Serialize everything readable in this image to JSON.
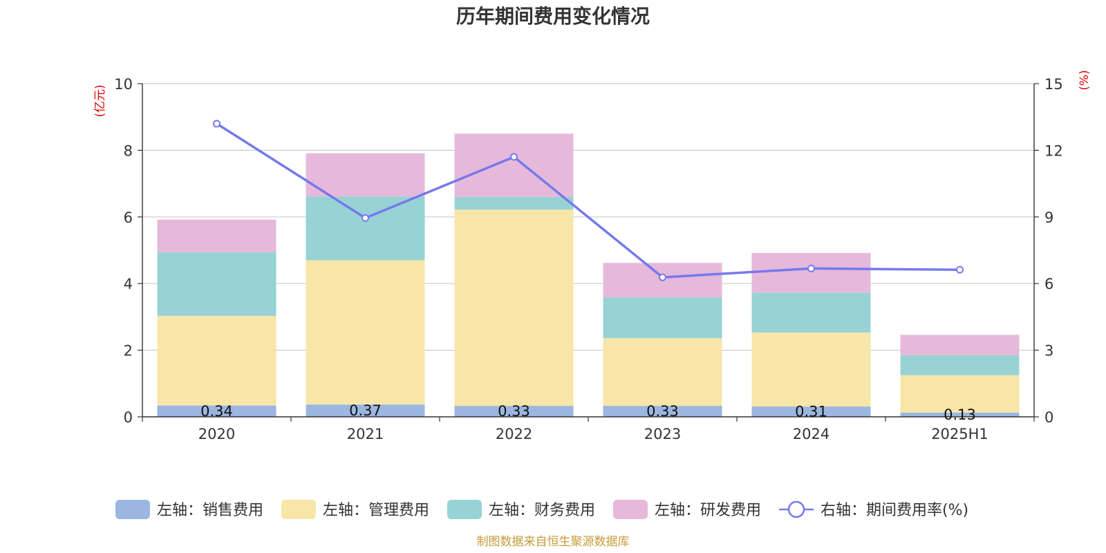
{
  "chart_data": {
    "type": "bar",
    "title": "历年期间费用变化情况",
    "left_unit": "(亿元)",
    "right_unit": "(%)",
    "categories": [
      "2020",
      "2021",
      "2022",
      "2023",
      "2024",
      "2025H1"
    ],
    "left_axis": {
      "min": 0,
      "max": 10,
      "ticks": [
        "0",
        "2",
        "4",
        "6",
        "8",
        "10"
      ]
    },
    "right_axis": {
      "min": 0,
      "max": 15,
      "ticks": [
        "0",
        "3",
        "6",
        "9",
        "12",
        "15"
      ]
    },
    "grid": true,
    "stacked": true,
    "series": [
      {
        "name": "左轴：销售费用",
        "type": "bar",
        "axis": "left",
        "color": "#9bb6e0",
        "values": [
          0.34,
          0.37,
          0.33,
          0.33,
          0.31,
          0.13
        ],
        "labels": [
          "0.34",
          "0.37",
          "0.33",
          "0.33",
          "0.31",
          "0.13"
        ]
      },
      {
        "name": "左轴：管理费用",
        "type": "bar",
        "axis": "left",
        "color": "#f8e6a8",
        "values": [
          2.69,
          4.33,
          5.89,
          2.03,
          2.22,
          1.12
        ]
      },
      {
        "name": "左轴：财务费用",
        "type": "bar",
        "axis": "left",
        "color": "#97d3d5",
        "values": [
          1.91,
          1.91,
          0.38,
          1.22,
          1.19,
          0.6
        ]
      },
      {
        "name": "左轴：研发费用",
        "type": "bar",
        "axis": "left",
        "color": "#e6b9da",
        "values": [
          0.98,
          1.3,
          1.9,
          1.04,
          1.2,
          0.61
        ]
      },
      {
        "name": "右轴：期间费用率(%)",
        "type": "line",
        "axis": "right",
        "color": "#7579ec",
        "values": [
          13.2,
          8.95,
          11.7,
          6.28,
          6.68,
          6.62
        ]
      }
    ],
    "legend_position": "bottom"
  },
  "source_text": "制图数据来自恒生聚源数据库"
}
